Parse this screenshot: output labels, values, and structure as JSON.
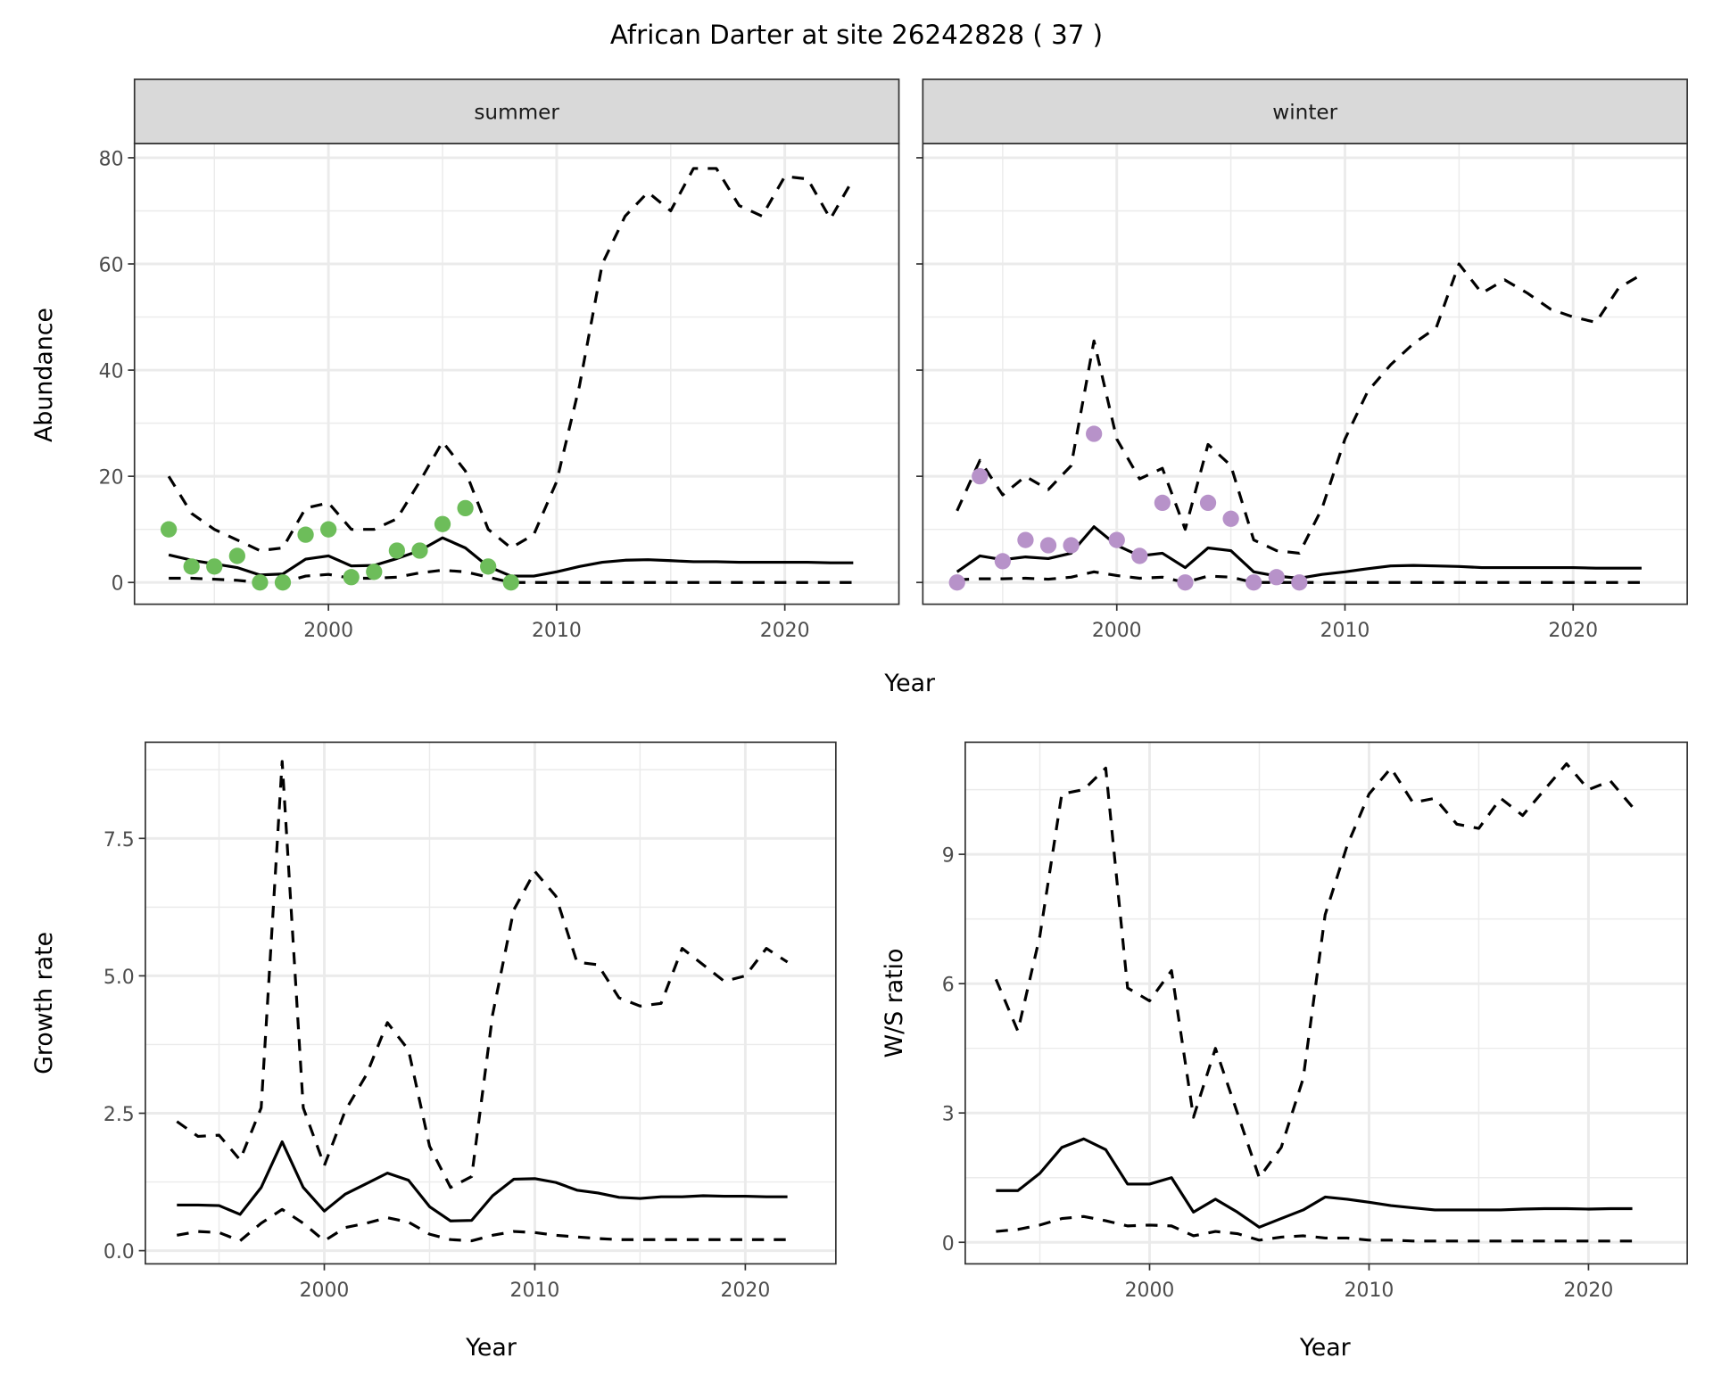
{
  "title": "African Darter at site 26242828 ( 37 )",
  "colors": {
    "summer_points": "#6dbd5a",
    "winter_points": "#b792c9",
    "strip": "#d9d9d9",
    "grid": "#ebebeb",
    "border": "#333333"
  },
  "shared_labels": {
    "top_xlabel": "Year",
    "top_ylabel": "Abundance"
  },
  "chart_data": [
    {
      "id": "summer",
      "type": "line",
      "strip_label": "summer",
      "xlim": [
        1991.5,
        2025
      ],
      "ylim": [
        -4.1,
        82.7
      ],
      "xticks": [
        2000,
        2010,
        2020
      ],
      "xminor": [
        1995,
        2005,
        2015
      ],
      "yticks": [
        0,
        20,
        40,
        60,
        80
      ],
      "yminor": [
        10,
        30,
        50,
        70
      ],
      "show_xtick_labels": true,
      "show_ytick_labels": true,
      "x": [
        1993,
        1994,
        1995,
        1996,
        1997,
        1998,
        1999,
        2000,
        2001,
        2002,
        2003,
        2004,
        2005,
        2006,
        2007,
        2008,
        2009,
        2010,
        2011,
        2012,
        2013,
        2014,
        2015,
        2016,
        2017,
        2018,
        2019,
        2020,
        2021,
        2022,
        2023
      ],
      "median": [
        5.2,
        4.2,
        3.5,
        2.8,
        1.4,
        1.6,
        4.4,
        5,
        3.1,
        3.2,
        4.5,
        6,
        8.4,
        6.5,
        3,
        1.2,
        1.2,
        2,
        3,
        3.8,
        4.2,
        4.3,
        4.1,
        3.9,
        3.9,
        3.8,
        3.8,
        3.8,
        3.8,
        3.7,
        3.7
      ],
      "upper": [
        20,
        13,
        10,
        8,
        6,
        6.5,
        14,
        15,
        10,
        10,
        12,
        19,
        26.5,
        21,
        10,
        6.5,
        9,
        19,
        37,
        60,
        69,
        73.5,
        70,
        78,
        78,
        71,
        69,
        76.5,
        76,
        68.5,
        76
      ],
      "lower": [
        0.8,
        0.8,
        0.6,
        0.4,
        0,
        0,
        1.2,
        1.5,
        0.8,
        0.8,
        1,
        1.8,
        2.3,
        2,
        1,
        0,
        0,
        0,
        0,
        0,
        0,
        0,
        0,
        0,
        0,
        0,
        0,
        0,
        0,
        0,
        0
      ],
      "points": {
        "x": [
          1993,
          1994,
          1995,
          1996,
          1997,
          1998,
          1999,
          2000,
          2001,
          2002,
          2003,
          2004,
          2005,
          2006,
          2007,
          2008
        ],
        "y": [
          10,
          3,
          3,
          5,
          0,
          0,
          9,
          10,
          1,
          2,
          6,
          6,
          11,
          14,
          3,
          0
        ]
      }
    },
    {
      "id": "winter",
      "type": "line",
      "strip_label": "winter",
      "xlim": [
        1991.5,
        2025
      ],
      "ylim": [
        -4.1,
        82.7
      ],
      "xticks": [
        2000,
        2010,
        2020
      ],
      "xminor": [
        1995,
        2005,
        2015
      ],
      "yticks": [
        0,
        20,
        40,
        60,
        80
      ],
      "yminor": [
        10,
        30,
        50,
        70
      ],
      "show_xtick_labels": true,
      "show_ytick_labels": false,
      "x": [
        1993,
        1994,
        1995,
        1996,
        1997,
        1998,
        1999,
        2000,
        2001,
        2002,
        2003,
        2004,
        2005,
        2006,
        2007,
        2008,
        2009,
        2010,
        2011,
        2012,
        2013,
        2014,
        2015,
        2016,
        2017,
        2018,
        2019,
        2020,
        2021,
        2022,
        2023
      ],
      "median": [
        2,
        5,
        4.3,
        4.8,
        4.5,
        5.5,
        10.5,
        7,
        5,
        5.5,
        2.8,
        6.5,
        6,
        2,
        1.2,
        0.8,
        1.5,
        2,
        2.6,
        3.1,
        3.2,
        3.1,
        3,
        2.8,
        2.8,
        2.8,
        2.8,
        2.8,
        2.7,
        2.7,
        2.7
      ],
      "upper": [
        13.5,
        23,
        16.5,
        20,
        17.5,
        22,
        45.5,
        27,
        19.5,
        21.5,
        10,
        26,
        22,
        8,
        6,
        5.5,
        14,
        27,
        36,
        41,
        45,
        48,
        60,
        54.5,
        57,
        54.5,
        51.5,
        50,
        49,
        55.5,
        58
      ],
      "lower": [
        0.5,
        0.7,
        0.7,
        0.8,
        0.6,
        1,
        2,
        1.3,
        0.8,
        1,
        0,
        1.2,
        1,
        0,
        0,
        0,
        0,
        0,
        0,
        0,
        0,
        0,
        0,
        0,
        0,
        0,
        0,
        0,
        0,
        0,
        0
      ],
      "points": {
        "x": [
          1993,
          1994,
          1995,
          1996,
          1997,
          1998,
          1999,
          2000,
          2001,
          2002,
          2003,
          2004,
          2005,
          2006,
          2007,
          2008
        ],
        "y": [
          0,
          20,
          4,
          8,
          7,
          7,
          28,
          8,
          5,
          15,
          0,
          15,
          12,
          0,
          1,
          0
        ]
      }
    },
    {
      "id": "growth",
      "type": "line",
      "xlabel": "Year",
      "ylabel": "Growth rate",
      "xlim": [
        1991.5,
        2024.3
      ],
      "ylim": [
        -0.24,
        9.25
      ],
      "xticks": [
        2000,
        2010,
        2020
      ],
      "xminor": [
        1995,
        2005,
        2015
      ],
      "yticks": [
        0,
        2.5,
        5,
        7.5
      ],
      "ytick_labels": [
        "0.0",
        "2.5",
        "5.0",
        "7.5"
      ],
      "yminor": [
        1.25,
        3.75,
        6.25,
        8.75
      ],
      "show_xtick_labels": true,
      "show_ytick_labels": true,
      "x": [
        1993,
        1994,
        1995,
        1996,
        1997,
        1998,
        1999,
        2000,
        2001,
        2002,
        2003,
        2004,
        2005,
        2006,
        2007,
        2008,
        2009,
        2010,
        2011,
        2012,
        2013,
        2014,
        2015,
        2016,
        2017,
        2018,
        2019,
        2020,
        2021,
        2022
      ],
      "median": [
        0.83,
        0.83,
        0.82,
        0.66,
        1.15,
        1.98,
        1.15,
        0.72,
        1.03,
        1.22,
        1.41,
        1.28,
        0.8,
        0.54,
        0.55,
        1.0,
        1.3,
        1.31,
        1.24,
        1.1,
        1.05,
        0.97,
        0.95,
        0.98,
        0.98,
        1.0,
        0.99,
        0.99,
        0.98,
        0.98
      ],
      "upper": [
        2.35,
        2.08,
        2.1,
        1.65,
        2.6,
        8.9,
        2.6,
        1.55,
        2.55,
        3.2,
        4.15,
        3.65,
        1.9,
        1.15,
        1.35,
        4.3,
        6.2,
        6.9,
        6.45,
        5.25,
        5.2,
        4.6,
        4.45,
        4.5,
        5.5,
        5.2,
        4.9,
        5.0,
        5.5,
        5.25
      ],
      "lower": [
        0.28,
        0.35,
        0.33,
        0.18,
        0.5,
        0.75,
        0.5,
        0.18,
        0.42,
        0.5,
        0.6,
        0.52,
        0.3,
        0.2,
        0.18,
        0.28,
        0.35,
        0.33,
        0.28,
        0.25,
        0.22,
        0.2,
        0.2,
        0.2,
        0.2,
        0.2,
        0.2,
        0.2,
        0.2,
        0.2
      ]
    },
    {
      "id": "ratio",
      "type": "line",
      "xlabel": "Year",
      "ylabel": "W/S ratio",
      "xlim": [
        1991.6,
        2024.5
      ],
      "ylim": [
        -0.5,
        11.6
      ],
      "xticks": [
        2000,
        2010,
        2020
      ],
      "xminor": [
        1995,
        2005,
        2015
      ],
      "yticks": [
        0,
        3,
        6,
        9
      ],
      "yminor": [
        1.5,
        4.5,
        7.5,
        10.5
      ],
      "show_xtick_labels": true,
      "show_ytick_labels": true,
      "x": [
        1993,
        1994,
        1995,
        1996,
        1997,
        1998,
        1999,
        2000,
        2001,
        2002,
        2003,
        2004,
        2005,
        2006,
        2007,
        2008,
        2009,
        2010,
        2011,
        2012,
        2013,
        2014,
        2015,
        2016,
        2017,
        2018,
        2019,
        2020,
        2021,
        2022
      ],
      "median": [
        1.2,
        1.2,
        1.6,
        2.2,
        2.4,
        2.15,
        1.35,
        1.35,
        1.5,
        0.7,
        1.0,
        0.7,
        0.35,
        0.55,
        0.75,
        1.05,
        1.0,
        0.93,
        0.85,
        0.8,
        0.75,
        0.75,
        0.75,
        0.75,
        0.77,
        0.78,
        0.78,
        0.77,
        0.78,
        0.78
      ],
      "upper": [
        6.1,
        4.9,
        7.1,
        10.4,
        10.5,
        11.0,
        5.9,
        5.6,
        6.3,
        2.9,
        4.5,
        3.0,
        1.5,
        2.2,
        3.8,
        7.6,
        9.2,
        10.4,
        11.0,
        10.2,
        10.3,
        9.7,
        9.6,
        10.3,
        9.9,
        10.5,
        11.1,
        10.5,
        10.7,
        10.1
      ],
      "lower": [
        0.25,
        0.3,
        0.4,
        0.55,
        0.6,
        0.5,
        0.38,
        0.4,
        0.38,
        0.15,
        0.25,
        0.2,
        0.05,
        0.12,
        0.15,
        0.1,
        0.1,
        0.05,
        0.05,
        0.03,
        0.03,
        0.03,
        0.03,
        0.03,
        0.03,
        0.03,
        0.03,
        0.03,
        0.03,
        0.03
      ]
    }
  ]
}
